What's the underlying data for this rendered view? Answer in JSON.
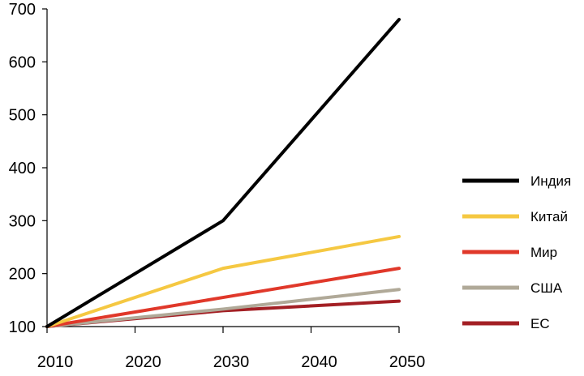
{
  "chart_data": {
    "type": "line",
    "x": [
      2010,
      2030,
      2050
    ],
    "series": [
      {
        "name": "Индия",
        "values": [
          100,
          300,
          680
        ],
        "color": "#000000"
      },
      {
        "name": "Китай",
        "values": [
          100,
          210,
          270
        ],
        "color": "#f5c842"
      },
      {
        "name": "Мир",
        "values": [
          100,
          155,
          210
        ],
        "color": "#e0382a"
      },
      {
        "name": "США",
        "values": [
          100,
          133,
          170
        ],
        "color": "#b0a998"
      },
      {
        "name": "ЕС",
        "values": [
          100,
          130,
          148
        ],
        "color": "#a31f24"
      }
    ],
    "xticks": [
      "2010",
      "2020",
      "2030",
      "2040",
      "2050"
    ],
    "yticks": [
      "100",
      "200",
      "300",
      "400",
      "500",
      "600",
      "700"
    ],
    "xlim": [
      2010,
      2050
    ],
    "ylim": [
      100,
      700
    ],
    "grid": false,
    "legend_position": "right"
  }
}
